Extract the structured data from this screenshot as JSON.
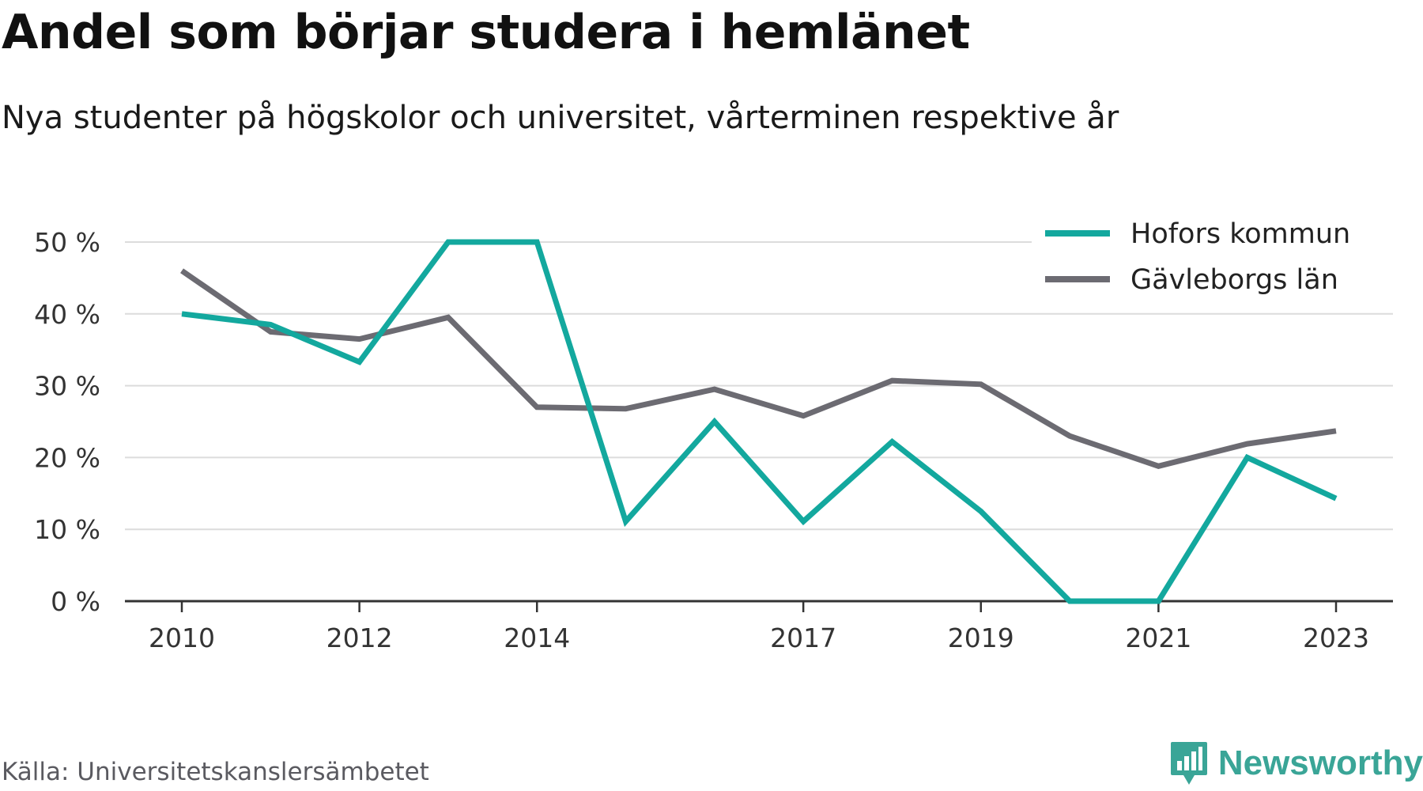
{
  "title": "Andel som börjar studera i hemlänet",
  "subtitle": "Nya studenter på högskolor och universitet, vårterminen respektive år",
  "source": "Källa: Universitetskanslersämbetet",
  "brand": {
    "name": "Newsworthy",
    "logo_icon": "bar-chart-badge-icon",
    "color": "#3aa597"
  },
  "colors": {
    "hofors": "#13a89e",
    "gavleborg": "#6c6b72",
    "grid": "#dcdcdc",
    "axis": "#333333"
  },
  "chart_data": {
    "type": "line",
    "title": "Andel som börjar studera i hemlänet",
    "subtitle": "Nya studenter på högskolor och universitet, vårterminen respektive år",
    "x": [
      2010,
      2011,
      2012,
      2013,
      2014,
      2015,
      2016,
      2017,
      2018,
      2019,
      2020,
      2021,
      2022,
      2023
    ],
    "x_tick_labels": [
      "2010",
      "2012",
      "2014",
      "2017",
      "2019",
      "2021",
      "2023"
    ],
    "y_tick_labels": [
      "0 %",
      "10 %",
      "20 %",
      "30 %",
      "40 %",
      "50 %"
    ],
    "ylim": [
      0,
      50
    ],
    "y_unit": "%",
    "grid": true,
    "legend_position": "top-right",
    "series": [
      {
        "name": "Hofors kommun",
        "color": "#13a89e",
        "values": [
          40,
          38.5,
          33.3,
          50,
          50,
          11.1,
          25,
          11.1,
          22.2,
          12.5,
          0,
          0,
          20,
          14.3
        ]
      },
      {
        "name": "Gävleborgs län",
        "color": "#6c6b72",
        "values": [
          46,
          37.5,
          36.5,
          39.5,
          27,
          26.8,
          29.5,
          25.8,
          30.7,
          30.2,
          23,
          18.8,
          21.9,
          23.7
        ]
      }
    ]
  }
}
